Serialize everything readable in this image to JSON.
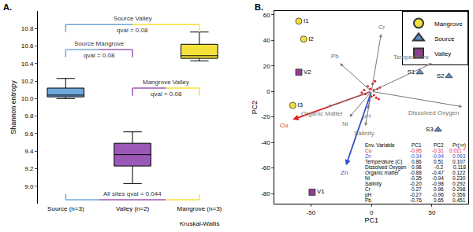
{
  "chart_data": [
    {
      "label": "A.",
      "type": "box",
      "y_label": "Shannon entropy",
      "categories": [
        "Source (n=3)",
        "Valley (n=2)",
        "Mangrove (n=3)"
      ],
      "colors": [
        "#6fa8dc",
        "#9b59b6",
        "#f4e23a"
      ],
      "boxes": [
        {
          "lowerfence": 10.0,
          "q1": 10.02,
          "median": 10.04,
          "q3": 10.12,
          "upperfence": 10.23
        },
        {
          "lowerfence": 9.03,
          "q1": 9.23,
          "median": 9.36,
          "q3": 9.49,
          "upperfence": 9.62
        },
        {
          "lowerfence": 10.43,
          "q1": 10.46,
          "median": 10.49,
          "q3": 10.62,
          "upperfence": 10.76
        }
      ],
      "ylim": [
        8.8,
        11.0
      ],
      "yticks": [
        {
          "value": 9.0,
          "label": "9.0"
        },
        {
          "value": 9.2,
          "label": "9.2"
        },
        {
          "value": 9.4,
          "label": "9.4"
        },
        {
          "value": 9.6,
          "label": "9.6"
        },
        {
          "value": 9.8,
          "label": "9.8"
        },
        {
          "value": 10.0,
          "label": "10.0"
        },
        {
          "value": 10.2,
          "label": "10.2"
        },
        {
          "value": 10.4,
          "label": "10.4"
        },
        {
          "value": 10.6,
          "label": "10.6"
        },
        {
          "value": 10.8,
          "label": "10.8"
        }
      ],
      "comparisons": [
        {
          "from": "Source (n=3)",
          "to": "Mangrove (n=3)",
          "label": "Source Valley",
          "qval_label": "qval = 0.08"
        },
        {
          "from": "Source (n=3)",
          "to": "Valley (n=2)",
          "label": "Source Mangrove",
          "qval_label": "qval = 0.08"
        },
        {
          "from": "Valley (n=2)",
          "to": "Mangrove (n=3)",
          "label": "Mangrove Valley",
          "qval_label": "qval = 0.08"
        }
      ],
      "test": {
        "label": "All sites qval = 0.044",
        "name": "Kruskal-Wallis"
      }
    },
    {
      "label": "B.",
      "type": "scatter",
      "x_label": "PC1",
      "y_label": "PC2",
      "xlim": [
        -80,
        80
      ],
      "xticks": [
        -50,
        0,
        50
      ],
      "ylim": [
        -88,
        63
      ],
      "yticks": [
        -80,
        -60,
        -40,
        -20,
        0,
        20,
        40,
        60
      ],
      "legend": "top right",
      "series": [
        {
          "name": "Mangrove",
          "color": "#f2e03a",
          "marker": "circle",
          "labels": [
            "I1",
            "I2",
            "I3"
          ],
          "x": [
            -60,
            -56,
            -65
          ],
          "y": [
            55,
            41,
            -11
          ]
        },
        {
          "name": "Source",
          "color": "#5b8ec9",
          "marker": "triangle-up",
          "labels": [
            "S1",
            "S2",
            "S3"
          ],
          "x": [
            40,
            64,
            55
          ],
          "y": [
            15,
            12,
            -30
          ]
        },
        {
          "name": "Valley",
          "color": "#8e3e8e",
          "marker": "square",
          "labels": [
            "V1",
            "V2"
          ],
          "x": [
            -49,
            -60
          ],
          "y": [
            -79,
            15
          ]
        }
      ],
      "vectors": [
        {
          "name": "Cu",
          "x": -65,
          "y": -22,
          "color": "#e41a1c"
        },
        {
          "name": "Zn",
          "x": -21,
          "y": -58,
          "color": "#3050c8"
        },
        {
          "name": "Cr",
          "x": 8,
          "y": 45,
          "color": "#777777"
        },
        {
          "name": "Temperature",
          "x": 50,
          "y": 22,
          "color": "#777777"
        },
        {
          "name": "Dissolved Oxygen",
          "x": 75,
          "y": -12,
          "color": "#777777"
        },
        {
          "name": "Pb",
          "x": -26,
          "y": 22,
          "color": "#777777"
        },
        {
          "name": "Organic Matter",
          "x": -36,
          "y": -12,
          "color": "#777777"
        },
        {
          "name": "Ni",
          "x": -18,
          "y": -20,
          "color": "#777777"
        },
        {
          "name": "pH",
          "x": -3,
          "y": -14,
          "color": "#777777"
        },
        {
          "name": "Salinity",
          "x": -5,
          "y": -27,
          "color": "#777777"
        }
      ],
      "species": {
        "color": "#e41a1c",
        "x": [
          -3,
          2,
          5,
          -6,
          1,
          4,
          -2,
          7,
          -5,
          3,
          0,
          -8,
          6,
          -1,
          2
        ],
        "y": [
          4,
          -3,
          2,
          1,
          6,
          -5,
          -7,
          3,
          -2,
          8,
          -4,
          -1,
          -6,
          2,
          1
        ]
      },
      "table": {
        "columns": [
          "Env. Variable",
          "PC1",
          "PC2",
          "Pr(>r)"
        ],
        "rows": [
          {
            "cells": [
              "Cu",
              "-0.95",
              "-0.31",
              "0.011 *"
            ],
            "color": "#e41a1c"
          },
          {
            "cells": [
              "Zn",
              "-0.34",
              "-0.94",
              "0.063"
            ],
            "color": "#3050c8"
          },
          {
            "cells": [
              "Temperature (C)",
              "0.86",
              "0.51",
              "0.107"
            ],
            "color": "#000000"
          },
          {
            "cells": [
              "Dissolved Oxygen",
              "0.98",
              "-0.2",
              "0.118"
            ],
            "color": "#000000"
          },
          {
            "cells": [
              "Organic matter",
              "-0.88",
              "-0.47",
              "0.122"
            ],
            "color": "#000000"
          },
          {
            "cells": [
              "Ni",
              "-0.35",
              "-0.94",
              "0.230"
            ],
            "color": "#000000"
          },
          {
            "cells": [
              "Salinity",
              "-0.20",
              "-0.98",
              "0.292"
            ],
            "color": "#000000"
          },
          {
            "cells": [
              "Cr",
              "0.27",
              "0.96",
              "0.298"
            ],
            "color": "#000000"
          },
          {
            "cells": [
              "pH",
              "-0.27",
              "-0.96",
              "0.356"
            ],
            "color": "#000000"
          },
          {
            "cells": [
              "Pb",
              "-0.76",
              "0.65",
              "0.451"
            ],
            "color": "#000000"
          }
        ]
      }
    }
  ]
}
